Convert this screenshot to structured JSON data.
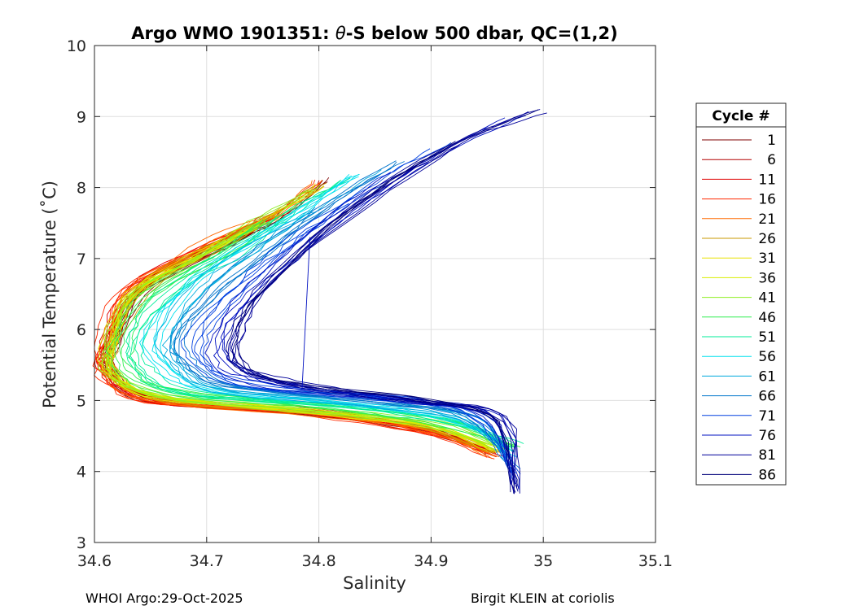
{
  "chart_data": {
    "type": "line",
    "title_prefix": "Argo WMO 1901351: ",
    "title_theta": "θ",
    "title_suffix": "-S below 500 dbar,  QC=(1,2)",
    "xlabel": "Salinity",
    "ylabel": "Potential Temperature (˚C)",
    "xlim": [
      34.6,
      35.1
    ],
    "ylim": [
      3,
      10
    ],
    "xticks": [
      34.6,
      34.7,
      34.8,
      34.9,
      35,
      35.1
    ],
    "xtick_labels": [
      "34.6",
      "34.7",
      "34.8",
      "34.9",
      "35",
      "35.1"
    ],
    "yticks": [
      3,
      4,
      5,
      6,
      7,
      8,
      9,
      10
    ],
    "ytick_labels": [
      "3",
      "4",
      "5",
      "6",
      "7",
      "8",
      "9",
      "10"
    ],
    "grid": true,
    "legend_position": "right-outside",
    "legend_title": "Cycle #",
    "legend": [
      {
        "label": "1",
        "color": "#7f0000"
      },
      {
        "label": "6",
        "color": "#b30000"
      },
      {
        "label": "11",
        "color": "#e00000"
      },
      {
        "label": "16",
        "color": "#ff2a00"
      },
      {
        "label": "21",
        "color": "#ff6a00"
      },
      {
        "label": "26",
        "color": "#c99a00"
      },
      {
        "label": "31",
        "color": "#e8e000"
      },
      {
        "label": "36",
        "color": "#d8ee00"
      },
      {
        "label": "41",
        "color": "#8eee20"
      },
      {
        "label": "46",
        "color": "#30ee50"
      },
      {
        "label": "51",
        "color": "#00ee9a"
      },
      {
        "label": "56",
        "color": "#00e0ee"
      },
      {
        "label": "61",
        "color": "#00aadd"
      },
      {
        "label": "66",
        "color": "#0074cc"
      },
      {
        "label": "71",
        "color": "#0040e0"
      },
      {
        "label": "76",
        "color": "#0010c0"
      },
      {
        "label": "81",
        "color": "#00009a"
      },
      {
        "label": "86",
        "color": "#00007a"
      }
    ],
    "group_envelopes": [
      {
        "cycles": "1-10",
        "top": [
          [
            34.81,
            8.1
          ],
          [
            34.77,
            7.6
          ],
          [
            34.72,
            7.2
          ],
          [
            34.65,
            6.6
          ]
        ],
        "core": [
          [
            34.62,
            5.8
          ],
          [
            34.62,
            5.4
          ],
          [
            34.66,
            5.0
          ]
        ],
        "base": [
          [
            34.8,
            4.85
          ],
          [
            34.9,
            4.6
          ],
          [
            34.95,
            4.3
          ]
        ]
      },
      {
        "cycles": "11-20",
        "top": [
          [
            34.8,
            8.1
          ],
          [
            34.76,
            7.6
          ],
          [
            34.71,
            7.2
          ],
          [
            34.64,
            6.6
          ]
        ],
        "core": [
          [
            34.61,
            5.8
          ],
          [
            34.61,
            5.4
          ],
          [
            34.65,
            5.0
          ]
        ],
        "base": [
          [
            34.8,
            4.82
          ],
          [
            34.9,
            4.55
          ],
          [
            34.955,
            4.25
          ]
        ]
      },
      {
        "cycles": "21-30",
        "top": [
          [
            34.8,
            8.1
          ],
          [
            34.76,
            7.6
          ],
          [
            34.7,
            7.2
          ],
          [
            34.63,
            6.6
          ]
        ],
        "core": [
          [
            34.61,
            5.8
          ],
          [
            34.61,
            5.4
          ],
          [
            34.65,
            5.0
          ]
        ],
        "base": [
          [
            34.8,
            4.8
          ],
          [
            34.9,
            4.55
          ],
          [
            34.955,
            4.22
          ]
        ]
      },
      {
        "cycles": "31-40",
        "top": [
          [
            34.8,
            8.0
          ],
          [
            34.75,
            7.5
          ],
          [
            34.7,
            7.1
          ],
          [
            34.64,
            6.5
          ]
        ],
        "core": [
          [
            34.62,
            5.8
          ],
          [
            34.62,
            5.4
          ],
          [
            34.66,
            5.05
          ]
        ],
        "base": [
          [
            34.8,
            4.85
          ],
          [
            34.9,
            4.62
          ],
          [
            34.955,
            4.3
          ]
        ]
      },
      {
        "cycles": "41-50",
        "top": [
          [
            34.79,
            8.0
          ],
          [
            34.74,
            7.5
          ],
          [
            34.69,
            7.0
          ],
          [
            34.63,
            6.5
          ]
        ],
        "core": [
          [
            34.61,
            5.8
          ],
          [
            34.61,
            5.4
          ],
          [
            34.66,
            5.05
          ]
        ],
        "base": [
          [
            34.8,
            4.85
          ],
          [
            34.9,
            4.65
          ],
          [
            34.96,
            4.3
          ]
        ]
      },
      {
        "cycles": "51-60",
        "top": [
          [
            34.82,
            8.1
          ],
          [
            34.77,
            7.6
          ],
          [
            34.72,
            7.1
          ],
          [
            34.66,
            6.5
          ]
        ],
        "core": [
          [
            34.63,
            5.9
          ],
          [
            34.64,
            5.4
          ],
          [
            34.68,
            5.1
          ]
        ],
        "base": [
          [
            34.82,
            4.9
          ],
          [
            34.92,
            4.7
          ],
          [
            34.98,
            4.35
          ]
        ]
      },
      {
        "cycles": "61-70",
        "top": [
          [
            34.84,
            8.2
          ],
          [
            34.79,
            7.7
          ],
          [
            34.74,
            7.2
          ],
          [
            34.69,
            6.6
          ]
        ],
        "core": [
          [
            34.66,
            5.9
          ],
          [
            34.67,
            5.5
          ],
          [
            34.71,
            5.15
          ]
        ],
        "base": [
          [
            34.84,
            4.95
          ],
          [
            34.93,
            4.72
          ],
          [
            34.97,
            4.2
          ]
        ]
      },
      {
        "cycles": "71-80",
        "top": [
          [
            34.88,
            8.4
          ],
          [
            34.82,
            7.8
          ],
          [
            34.77,
            7.2
          ],
          [
            34.72,
            6.5
          ]
        ],
        "core": [
          [
            34.68,
            5.9
          ],
          [
            34.69,
            5.5
          ],
          [
            34.73,
            5.2
          ]
        ],
        "base": [
          [
            34.86,
            5.0
          ],
          [
            34.94,
            4.78
          ],
          [
            34.975,
            4.0
          ]
        ]
      },
      {
        "cycles": "81-88",
        "top": [
          [
            34.995,
            9.1
          ],
          [
            34.92,
            8.6
          ],
          [
            34.84,
            7.8
          ],
          [
            34.76,
            6.7
          ]
        ],
        "core": [
          [
            34.73,
            6.0
          ],
          [
            34.73,
            5.5
          ],
          [
            34.78,
            5.22
          ]
        ],
        "base": [
          [
            34.89,
            5.0
          ],
          [
            34.96,
            4.75
          ],
          [
            34.975,
            3.7
          ]
        ]
      }
    ]
  },
  "footer": {
    "left": "WHOI Argo:29-Oct-2025",
    "right": "Birgit KLEIN at coriolis"
  }
}
